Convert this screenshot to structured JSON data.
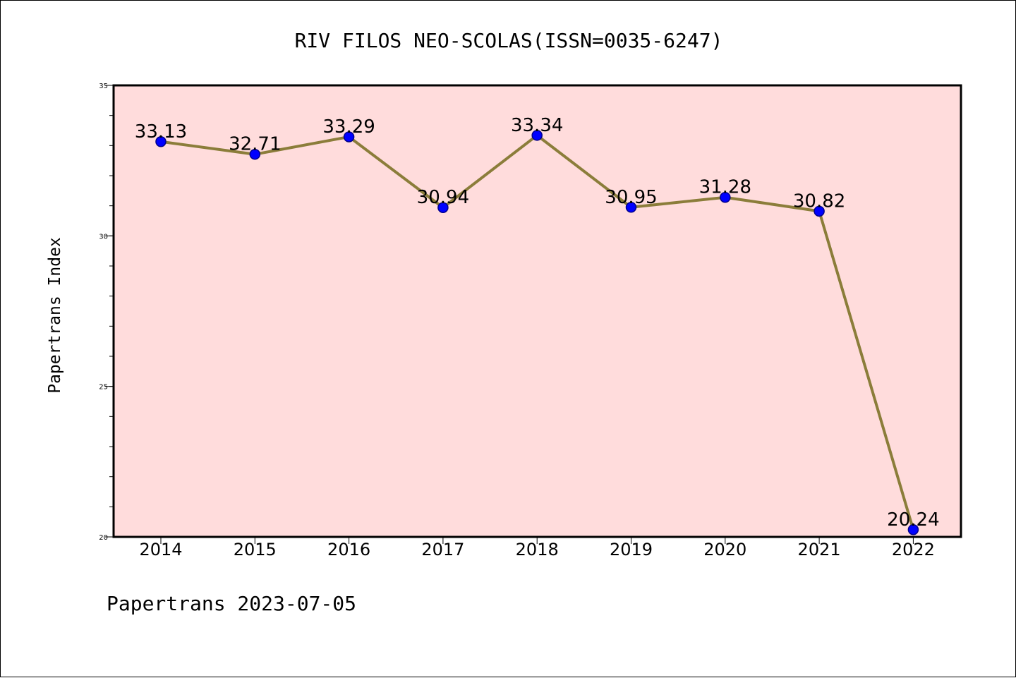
{
  "chart_data": {
    "type": "line",
    "title": "RIV FILOS NEO-SCOLAS(ISSN=0035-6247)",
    "xlabel": "",
    "ylabel": "Papertrans Index",
    "categories": [
      "2014",
      "2015",
      "2016",
      "2017",
      "2018",
      "2019",
      "2020",
      "2021",
      "2022"
    ],
    "values": [
      33.13,
      32.71,
      33.29,
      30.94,
      33.34,
      30.95,
      31.28,
      30.82,
      20.24
    ],
    "data_labels": [
      "33.13",
      "32.71",
      "33.29",
      "30.94",
      "33.34",
      "30.95",
      "31.28",
      "30.82",
      "20.24"
    ],
    "ylim": [
      20,
      35
    ],
    "yticks": [
      "20",
      "25",
      "30",
      "35"
    ],
    "grid": false,
    "legend": "none",
    "colors": {
      "plot_background": "#ffdcdc",
      "line": "#8b7d3a",
      "marker": "#0000ff",
      "marker_edge": "#00008b"
    },
    "footer": "Papertrans 2023-07-05"
  }
}
